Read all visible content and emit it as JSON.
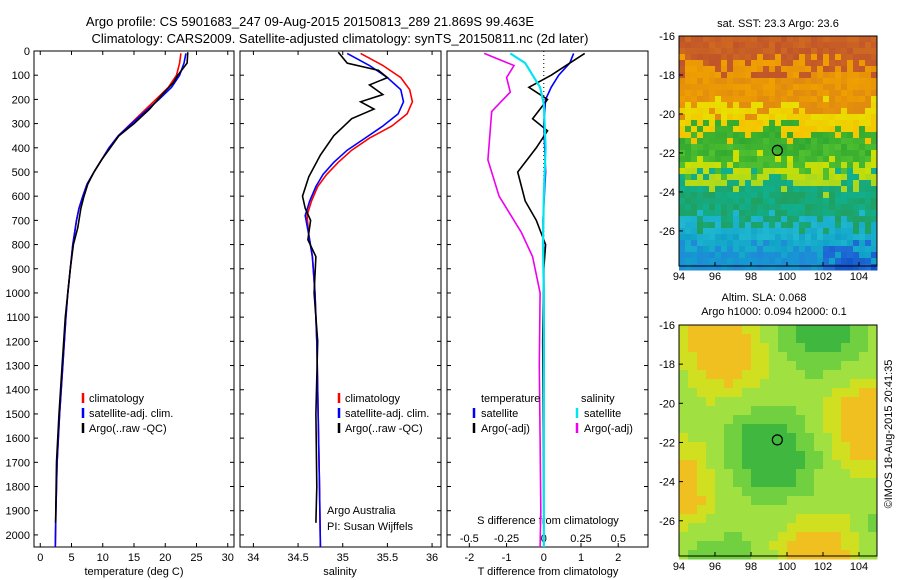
{
  "title_line1": "Argo profile: CS 5901683_247 09-Aug-2015 20150813_289 21.869S 99.463E",
  "title_line2": "Climatology: CARS2009. Satellite-adjusted climatology: synTS_20150811.nc (2d later)",
  "credit": "©IMOS 18-Aug-2015 20:41:35",
  "colors": {
    "climatology": "#ff0000",
    "satellite": "#0000ff",
    "argo": "#000000",
    "sal_satellite": "#00e5ee",
    "sal_argo": "#ee00ee"
  },
  "chart_data": [
    {
      "type": "line",
      "id": "temperature",
      "xlabel": "temperature (deg C)",
      "xlim": [
        -1,
        31
      ],
      "ylim": [
        2050,
        0
      ],
      "xticks": [
        0,
        5,
        10,
        15,
        20,
        25,
        30
      ],
      "yticks": [
        0,
        100,
        200,
        300,
        400,
        500,
        600,
        700,
        800,
        900,
        1000,
        1100,
        1200,
        1300,
        1400,
        1500,
        1600,
        1700,
        1800,
        1900,
        2000
      ],
      "legend": [
        "climatology",
        "satellite-adj. clim.",
        "Argo(..raw -QC)"
      ],
      "series": [
        {
          "name": "climatology",
          "color": "#ff0000",
          "x": [
            22.5,
            22.3,
            21.8,
            20.5,
            18.5,
            16.5,
            14.5,
            12.5,
            11.0,
            9.8,
            8.6,
            7.5,
            6.8,
            6.2,
            5.8,
            5.2,
            4.8,
            4.4,
            4.1,
            3.6,
            3.1,
            2.7,
            2.5,
            2.4
          ],
          "y": [
            10,
            50,
            100,
            150,
            200,
            250,
            300,
            350,
            400,
            450,
            500,
            550,
            600,
            650,
            700,
            800,
            900,
            1000,
            1100,
            1300,
            1500,
            1700,
            1900,
            2050
          ]
        },
        {
          "name": "satellite-adj. clim.",
          "color": "#0000ff",
          "x": [
            23.3,
            23.0,
            22.3,
            21.0,
            19.0,
            16.8,
            14.6,
            12.5,
            11.0,
            9.8,
            8.6,
            7.5,
            6.8,
            6.2,
            5.8,
            5.2,
            4.8,
            4.4,
            4.1,
            3.6,
            3.1,
            2.7,
            2.5,
            2.4
          ],
          "y": [
            10,
            50,
            100,
            150,
            200,
            250,
            300,
            350,
            400,
            450,
            500,
            550,
            600,
            650,
            700,
            800,
            900,
            1000,
            1100,
            1300,
            1500,
            1700,
            1900,
            2050
          ]
        },
        {
          "name": "Argo(..raw -QC)",
          "color": "#000000",
          "x": [
            23.6,
            23.5,
            22.0,
            21.3,
            19.5,
            17.5,
            15.0,
            12.6,
            11.2,
            9.8,
            8.6,
            7.6,
            7.0,
            6.5,
            6.0,
            5.3,
            4.8,
            4.4,
            4.0,
            3.5,
            3.0,
            2.6,
            2.45
          ],
          "y": [
            5,
            50,
            100,
            130,
            180,
            240,
            300,
            350,
            400,
            450,
            500,
            550,
            600,
            650,
            730,
            800,
            900,
            1000,
            1100,
            1300,
            1500,
            1700,
            1950
          ]
        }
      ]
    },
    {
      "type": "line",
      "id": "salinity",
      "xlabel": "salinity",
      "xlim": [
        33.85,
        36.1
      ],
      "ylim": [
        2050,
        0
      ],
      "xticks": [
        34,
        34.5,
        35,
        35.5,
        36
      ],
      "xticklabels": [
        "34",
        "34.5",
        "35",
        "35.5",
        "36"
      ],
      "legend": [
        "climatology",
        "satellite-adj. clim.",
        "Argo(..raw -QC)"
      ],
      "annotation": [
        "Argo Australia",
        "PI: Susan Wijffels"
      ],
      "series": [
        {
          "name": "climatology",
          "color": "#ff0000",
          "x": [
            35.2,
            35.45,
            35.65,
            35.75,
            35.78,
            35.72,
            35.55,
            35.3,
            35.1,
            34.95,
            34.82,
            34.72,
            34.65,
            34.6,
            34.62,
            34.66,
            34.69,
            34.71,
            34.72,
            34.73,
            34.74,
            34.75
          ],
          "y": [
            10,
            60,
            110,
            160,
            210,
            260,
            310,
            360,
            410,
            460,
            510,
            560,
            620,
            680,
            760,
            850,
            1000,
            1200,
            1400,
            1600,
            1800,
            2050
          ]
        },
        {
          "name": "satellite-adj. clim.",
          "color": "#0000ff",
          "x": [
            35.05,
            35.3,
            35.5,
            35.65,
            35.68,
            35.62,
            35.45,
            35.25,
            35.05,
            34.9,
            34.78,
            34.7,
            34.63,
            34.58,
            34.62,
            34.66,
            34.69,
            34.71,
            34.72,
            34.73,
            34.74,
            34.75
          ],
          "y": [
            10,
            60,
            110,
            160,
            210,
            260,
            310,
            360,
            410,
            460,
            510,
            560,
            620,
            680,
            760,
            850,
            1000,
            1200,
            1400,
            1600,
            1800,
            2050
          ]
        },
        {
          "name": "Argo(..raw -QC)",
          "color": "#000000",
          "x": [
            34.95,
            35.05,
            35.4,
            35.5,
            35.3,
            35.45,
            35.2,
            35.35,
            35.1,
            34.9,
            34.75,
            34.62,
            34.55,
            34.58,
            34.64,
            34.61,
            34.7,
            34.68,
            34.72,
            34.7,
            34.71,
            34.7
          ],
          "y": [
            5,
            50,
            80,
            110,
            140,
            180,
            210,
            240,
            280,
            350,
            430,
            520,
            600,
            650,
            700,
            780,
            850,
            1000,
            1200,
            1500,
            1800,
            1950
          ]
        }
      ]
    },
    {
      "type": "line",
      "id": "difference",
      "xlabel_bottom": "T difference from climatology",
      "xlabel_top": "S difference from climatology",
      "xlim": [
        -2.6,
        2.8
      ],
      "xticks_T": [
        -2,
        -1,
        0,
        1,
        2
      ],
      "xticks_S": [
        -0.5,
        -0.25,
        0,
        0.25,
        0.5
      ],
      "xticklabels_S": [
        "-0.5",
        "-0.25",
        "0",
        "0.25",
        "0.5"
      ],
      "legend_left_header": "temperature",
      "legend_right_header": "salinity",
      "legend": [
        "satellite",
        "Argo(-adj)",
        "satellite",
        "Argo(-adj)"
      ],
      "series": [
        {
          "name": "satellite",
          "color": "#0000ff",
          "x": [
            0.8,
            0.7,
            0.4,
            0.2,
            0.05,
            0.0,
            0.05,
            -0.02,
            0.0,
            0.01,
            0.0,
            0.0
          ],
          "y": [
            10,
            50,
            100,
            150,
            200,
            300,
            500,
            700,
            900,
            1200,
            1600,
            2050
          ]
        },
        {
          "name": "Argo(-adj)",
          "color": "#000000",
          "x": [
            1.1,
            0.7,
            0.2,
            -0.4,
            0.1,
            -0.3,
            0.1,
            -0.2,
            -0.7,
            -0.5,
            -0.2,
            0.05,
            0.0,
            -0.03,
            0.0
          ],
          "y": [
            10,
            50,
            100,
            150,
            200,
            280,
            330,
            400,
            500,
            620,
            700,
            800,
            900,
            1200,
            1900
          ]
        },
        {
          "name": "satellite",
          "color": "#00e5ee",
          "x": [
            -0.9,
            -0.5,
            -0.3,
            -0.1,
            0.0,
            0.05,
            0.0,
            -0.02,
            0.0,
            0.0,
            0.0
          ],
          "y": [
            10,
            50,
            100,
            150,
            220,
            400,
            600,
            800,
            1000,
            1500,
            2050
          ]
        },
        {
          "name": "Argo(-adj)",
          "color": "#ee00ee",
          "x": [
            -1.6,
            -0.8,
            -1.0,
            -0.9,
            -1.4,
            -1.5,
            -1.2,
            -0.6,
            -0.3,
            -0.1,
            -0.12,
            -0.1,
            -0.08,
            -0.1
          ],
          "y": [
            10,
            60,
            110,
            170,
            250,
            450,
            600,
            750,
            850,
            1000,
            1300,
            1600,
            1900,
            2050
          ]
        }
      ]
    },
    {
      "type": "heatmap",
      "id": "sst_map",
      "title": "sat. SST: 23.3 Argo: 23.6",
      "xlim": [
        94,
        105
      ],
      "ylim": [
        -27.8,
        -16
      ],
      "xticks": [
        94,
        96,
        98,
        100,
        102,
        104
      ],
      "yticks": [
        -16,
        -18,
        -20,
        -22,
        -24,
        -26
      ],
      "marker": {
        "lon": 99.463,
        "lat": -21.869
      }
    },
    {
      "type": "heatmap",
      "id": "sla_map",
      "title": "Altim. SLA: 0.068",
      "subtitle": "Argo h1000: 0.094 h2000: 0.1",
      "xlim": [
        94,
        105
      ],
      "ylim": [
        -27.8,
        -16
      ],
      "xticks": [
        94,
        96,
        98,
        100,
        102,
        104
      ],
      "yticks": [
        -16,
        -18,
        -20,
        -22,
        -24,
        -26
      ],
      "marker": {
        "lon": 99.463,
        "lat": -21.869
      }
    }
  ]
}
